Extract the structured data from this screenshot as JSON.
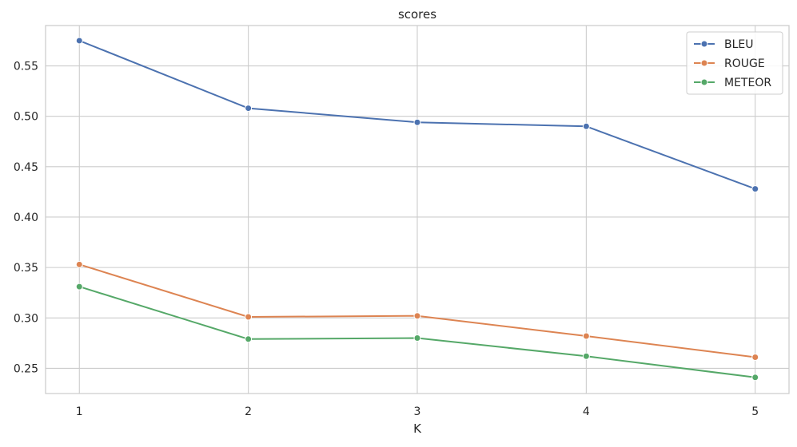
{
  "chart_data": {
    "type": "line",
    "title": "scores",
    "xlabel": "K",
    "ylabel": "",
    "x": [
      1,
      2,
      3,
      4,
      5
    ],
    "xticks": [
      "1",
      "2",
      "3",
      "4",
      "5"
    ],
    "yticks": [
      "0.25",
      "0.30",
      "0.35",
      "0.40",
      "0.45",
      "0.50",
      "0.55"
    ],
    "ylim": [
      0.225,
      0.59
    ],
    "xlim": [
      0.8,
      5.2
    ],
    "grid": true,
    "legend_position": "top-right",
    "markers": true,
    "series": [
      {
        "name": "BLEU",
        "color": "#4c72b0",
        "values": [
          0.575,
          0.508,
          0.494,
          0.49,
          0.428
        ]
      },
      {
        "name": "ROUGE",
        "color": "#dd8452",
        "values": [
          0.353,
          0.301,
          0.302,
          0.282,
          0.261
        ]
      },
      {
        "name": "METEOR",
        "color": "#55a868",
        "values": [
          0.331,
          0.279,
          0.28,
          0.262,
          0.241
        ]
      }
    ]
  }
}
